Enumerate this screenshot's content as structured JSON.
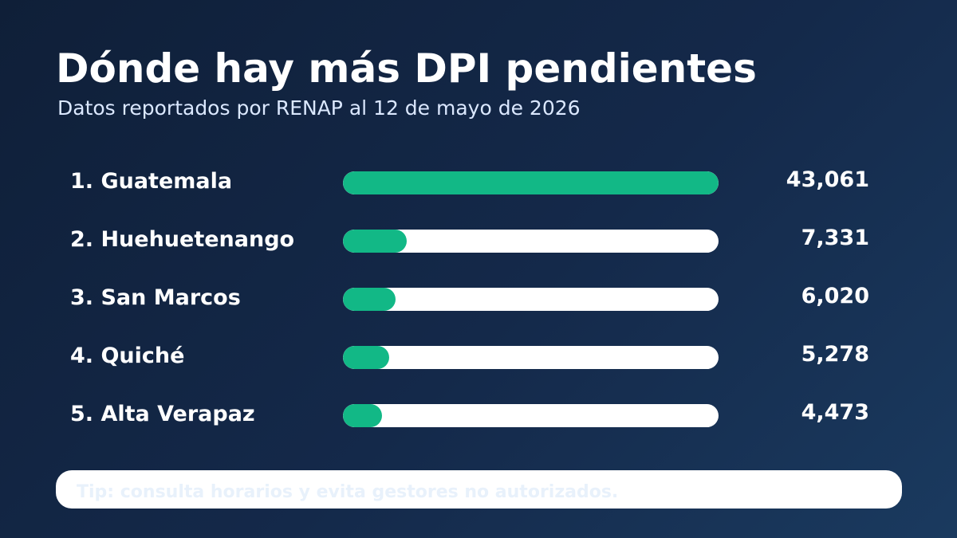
{
  "title": "Dónde hay más DPI pendientes",
  "subtitle": "Datos reportados por RENAP al 12 de mayo de 2026",
  "tip": "Tip: consulta horarios y evita gestores no autorizados.",
  "colors": {
    "bar": "#12b886",
    "track": "#ffffff",
    "background": "#14294a"
  },
  "chart_data": {
    "type": "bar",
    "orientation": "horizontal",
    "title": "Dónde hay más DPI pendientes",
    "subtitle": "Datos reportados por RENAP al 12 de mayo de 2026",
    "categories": [
      "1. Guatemala",
      "2. Huehuetenango",
      "3. San Marcos",
      "4. Quiché",
      "5. Alta Verapaz"
    ],
    "values": [
      43061,
      7331,
      6020,
      5278,
      4473
    ],
    "value_labels": [
      "43,061",
      "7,331",
      "6,020",
      "5,278",
      "4,473"
    ],
    "xlim": [
      0,
      43061
    ]
  }
}
